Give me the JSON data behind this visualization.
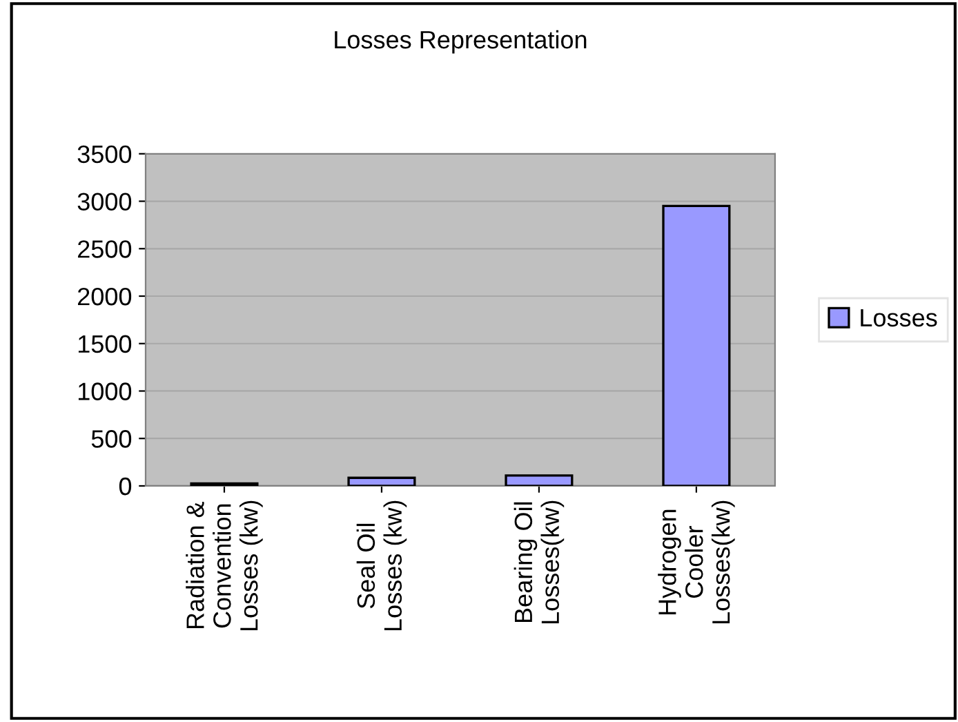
{
  "chart_data": {
    "type": "bar",
    "title": "Losses Representation",
    "categories": [
      "Radiation &\nConvention\nLosses (kw)",
      "Seal Oil\nLosses (kw)",
      "Bearing Oil\nLosses(kw)",
      "Hydrogen\nCooler\nLosses(kw)"
    ],
    "series": [
      {
        "name": "Losses",
        "color": "#9999ff",
        "values": [
          25,
          85,
          110,
          2950
        ]
      }
    ],
    "ylim": [
      0,
      3500
    ],
    "yticks": [
      0,
      500,
      1000,
      1500,
      2000,
      2500,
      3000,
      3500
    ],
    "grid": "y",
    "legend": "right"
  }
}
